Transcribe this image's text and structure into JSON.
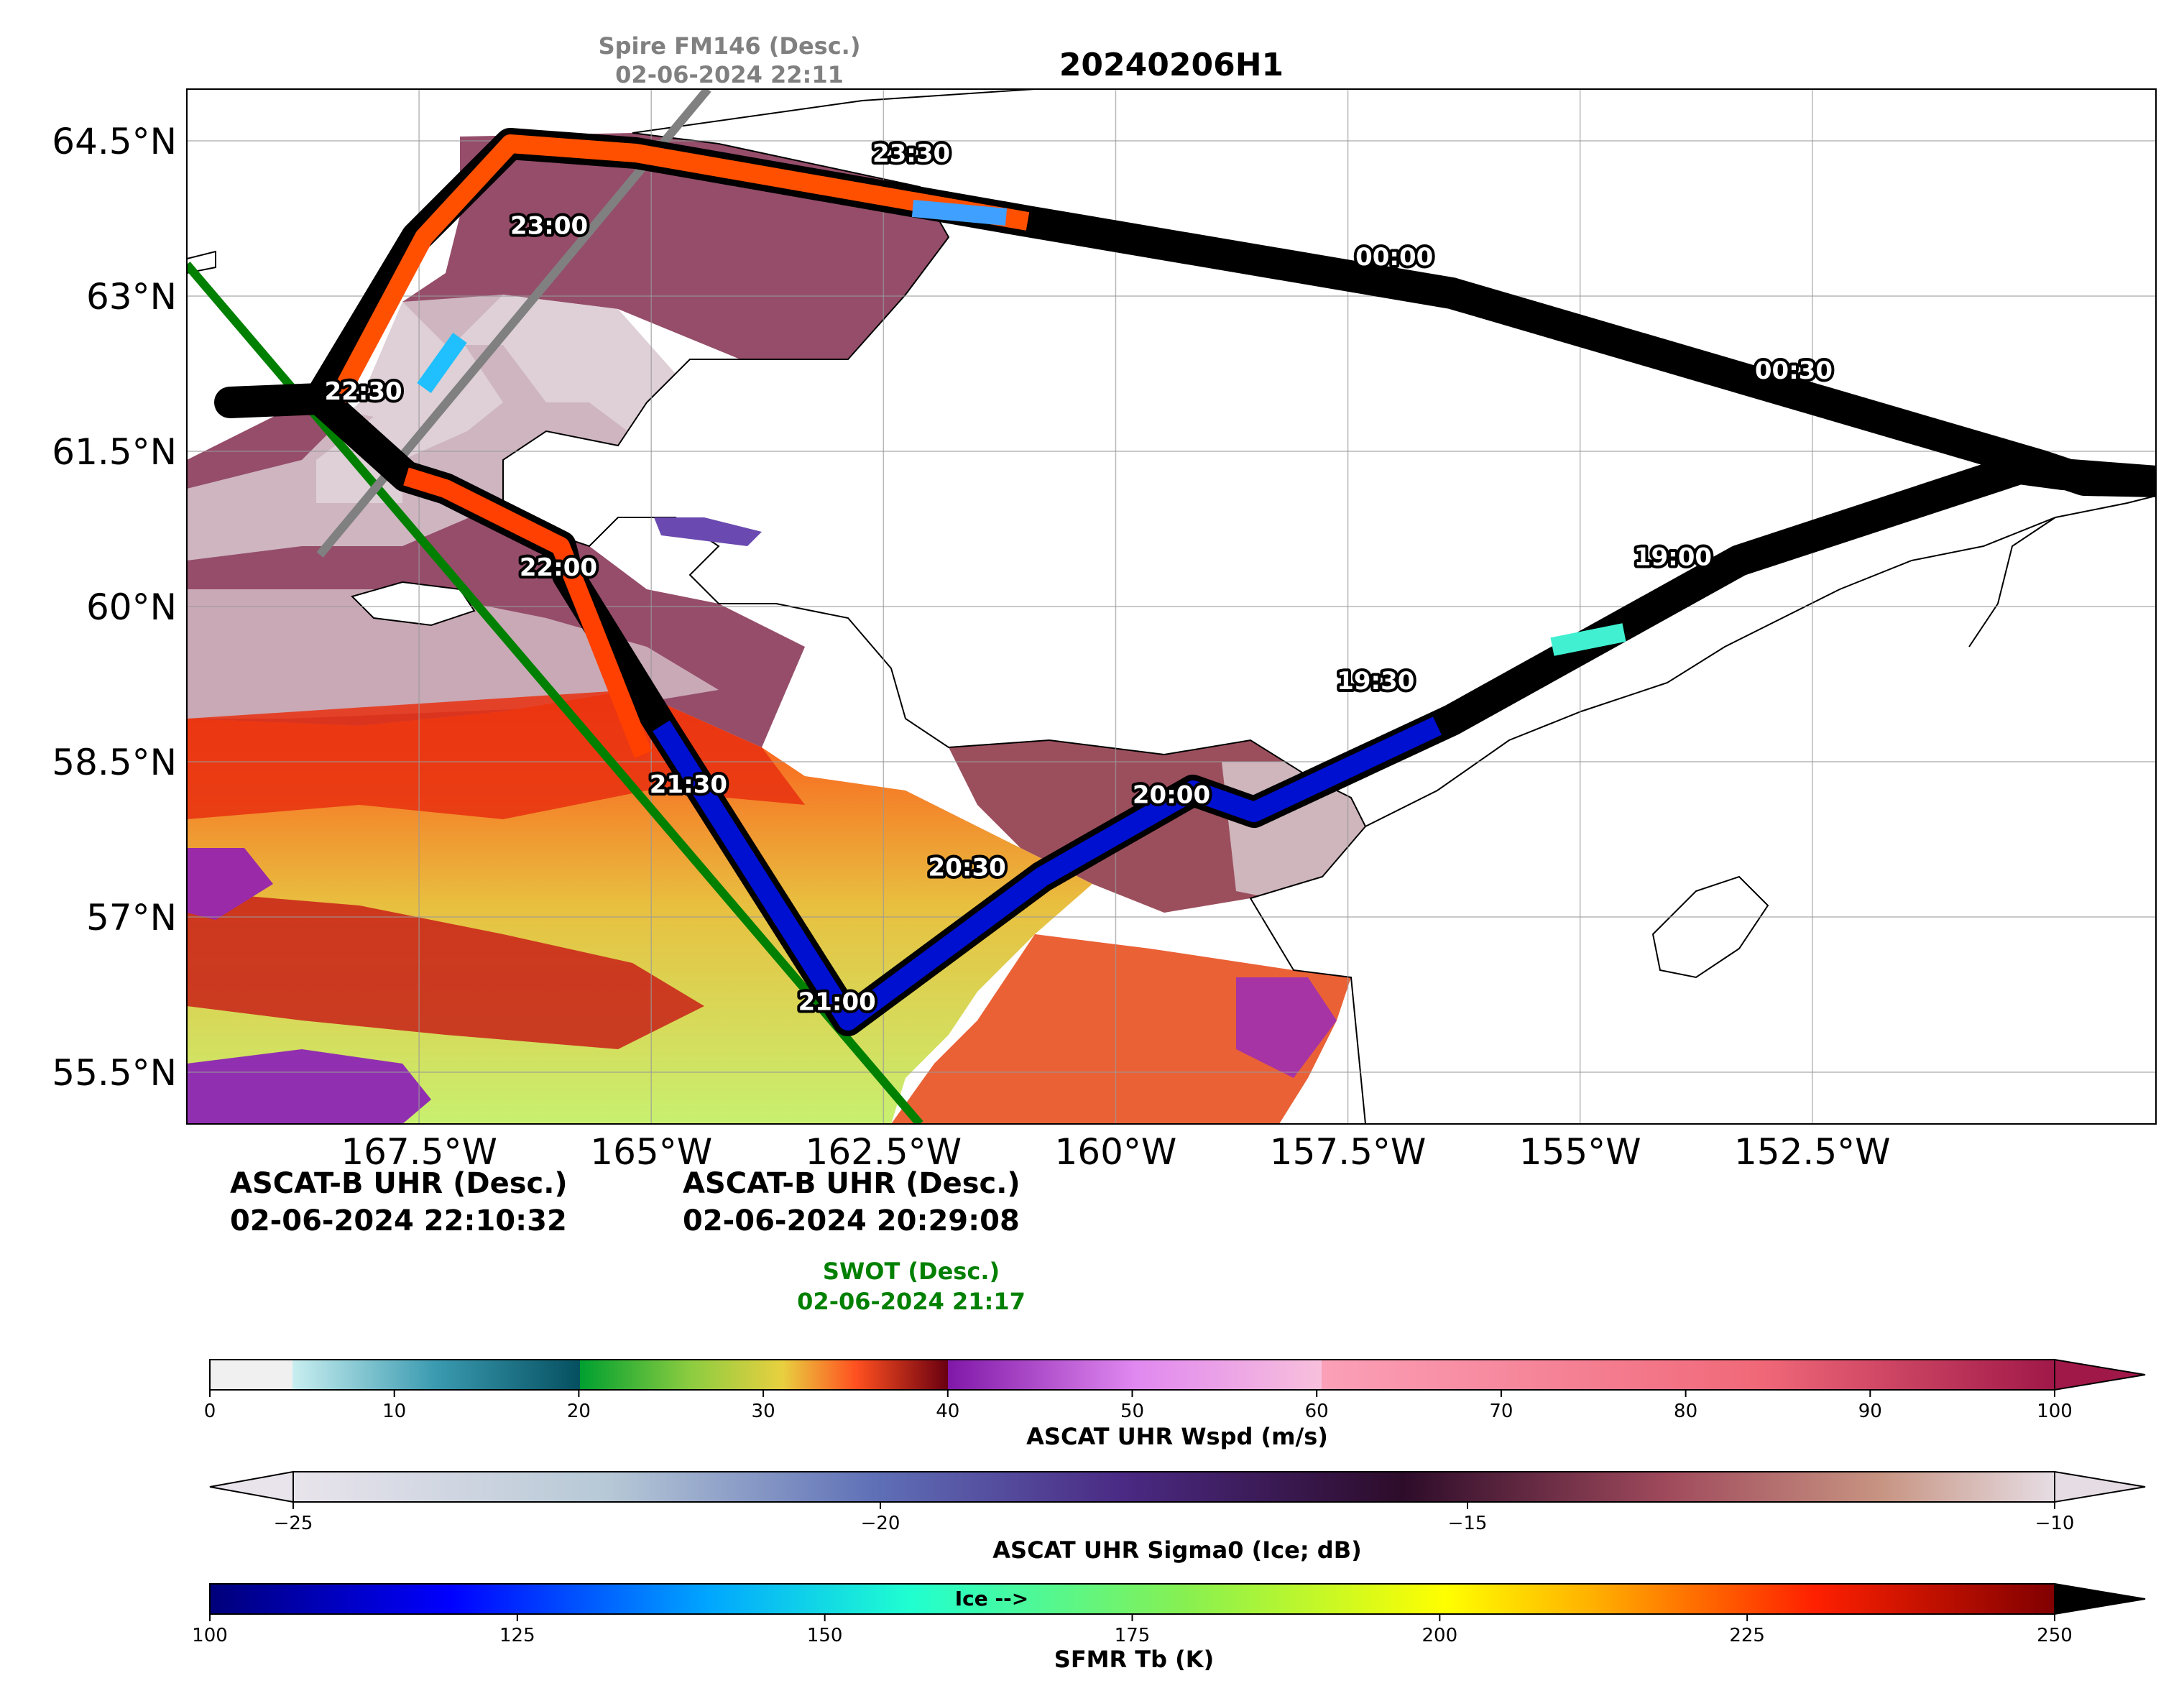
{
  "title": "20240206H1",
  "map": {
    "lon_range": [
      -170,
      -148.8
    ],
    "lat_range": [
      55,
      65
    ],
    "lat_ticks": [
      {
        "value": 64.5,
        "label": "64.5°N"
      },
      {
        "value": 63,
        "label": "63°N"
      },
      {
        "value": 61.5,
        "label": "61.5°N"
      },
      {
        "value": 60,
        "label": "60°N"
      },
      {
        "value": 58.5,
        "label": "58.5°N"
      },
      {
        "value": 57,
        "label": "57°N"
      },
      {
        "value": 55.5,
        "label": "55.5°N"
      }
    ],
    "lon_ticks": [
      {
        "value": -167.5,
        "label": "167.5°W"
      },
      {
        "value": -165,
        "label": "165°W"
      },
      {
        "value": -162.5,
        "label": "162.5°W"
      },
      {
        "value": -160,
        "label": "160°W"
      },
      {
        "value": -157.5,
        "label": "157.5°W"
      },
      {
        "value": -155,
        "label": "155°W"
      },
      {
        "value": -152.5,
        "label": "152.5°W"
      }
    ],
    "track_times": [
      {
        "label": "19:00",
        "lon": -154.0,
        "lat": 60.4
      },
      {
        "label": "19:30",
        "lon": -157.2,
        "lat": 59.2
      },
      {
        "label": "20:00",
        "lon": -159.4,
        "lat": 58.1
      },
      {
        "label": "20:30",
        "lon": -161.6,
        "lat": 57.4
      },
      {
        "label": "21:00",
        "lon": -163.0,
        "lat": 56.1
      },
      {
        "label": "21:30",
        "lon": -164.6,
        "lat": 58.2
      },
      {
        "label": "22:00",
        "lon": -166.0,
        "lat": 60.3
      },
      {
        "label": "22:30",
        "lon": -168.1,
        "lat": 62.0
      },
      {
        "label": "23:00",
        "lon": -166.1,
        "lat": 63.6
      },
      {
        "label": "23:30",
        "lon": -162.2,
        "lat": 64.3
      },
      {
        "label": "00:00",
        "lon": -157.0,
        "lat": 63.3
      },
      {
        "label": "00:30",
        "lon": -152.7,
        "lat": 62.2
      }
    ],
    "overpasses": [
      {
        "name": "Spire FM146 (Desc.)",
        "time": "02-06-2024 22:11",
        "color": "#808080"
      },
      {
        "name": "SWOT (Desc.)",
        "time": "02-06-2024 21:17",
        "color": "#008000"
      }
    ],
    "ascat_labels": [
      {
        "name": "ASCAT-B UHR (Desc.)",
        "time": "02-06-2024 22:10:32"
      },
      {
        "name": "ASCAT-B UHR (Desc.)",
        "time": "02-06-2024 20:29:08"
      }
    ]
  },
  "colorbars": {
    "wspd": {
      "label": "ASCAT UHR Wspd (m/s)",
      "range": [
        0,
        100
      ],
      "ticks": [
        {
          "v": 0,
          "label": "0"
        },
        {
          "v": 10,
          "label": "10"
        },
        {
          "v": 20,
          "label": "20"
        },
        {
          "v": 30,
          "label": "30"
        },
        {
          "v": 40,
          "label": "40"
        },
        {
          "v": 50,
          "label": "50"
        },
        {
          "v": 60,
          "label": "60"
        },
        {
          "v": 70,
          "label": "70"
        },
        {
          "v": 80,
          "label": "80"
        },
        {
          "v": 90,
          "label": "90"
        },
        {
          "v": 100,
          "label": "100"
        }
      ]
    },
    "sigma0": {
      "label": "ASCAT UHR Sigma0 (Ice; dB)",
      "range": [
        -25,
        -10
      ],
      "ticks": [
        {
          "v": -25,
          "label": "−25"
        },
        {
          "v": -20,
          "label": "−20"
        },
        {
          "v": -15,
          "label": "−15"
        },
        {
          "v": -10,
          "label": "−10"
        }
      ]
    },
    "tb": {
      "label": "SFMR Tb (K)",
      "annotation": "Ice -->",
      "range": [
        100,
        250
      ],
      "ticks": [
        {
          "v": 100,
          "label": "100"
        },
        {
          "v": 125,
          "label": "125"
        },
        {
          "v": 150,
          "label": "150"
        },
        {
          "v": 175,
          "label": "175"
        },
        {
          "v": 200,
          "label": "200"
        },
        {
          "v": 225,
          "label": "225"
        },
        {
          "v": 250,
          "label": "250"
        }
      ]
    }
  }
}
